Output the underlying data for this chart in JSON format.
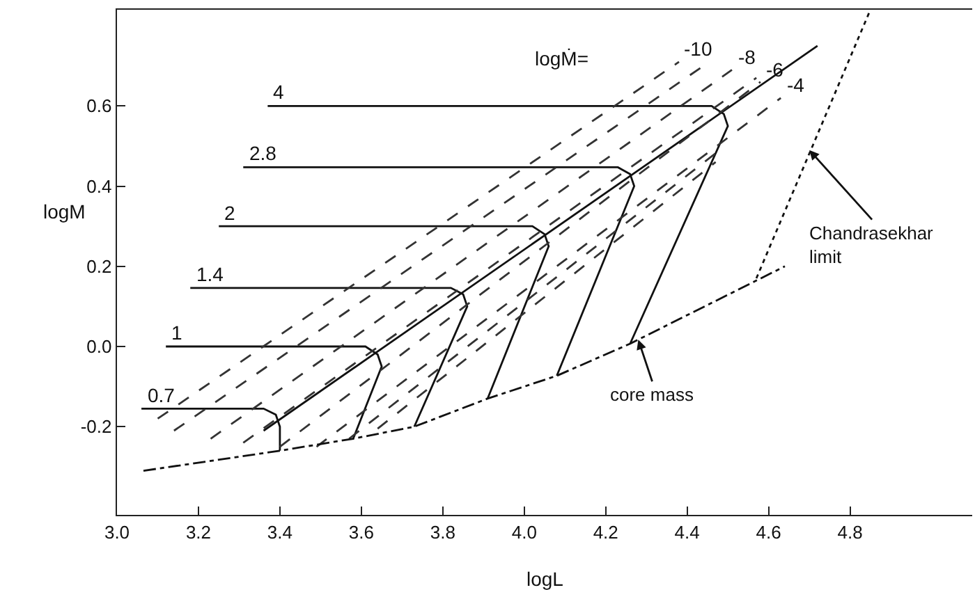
{
  "chart_data": {
    "type": "line",
    "xlabel": "logL",
    "ylabel": "logM",
    "xlim": [
      3.0,
      5.1
    ],
    "ylim": [
      -0.42,
      0.84
    ],
    "xticks": [
      {
        "value": 3.0,
        "label": "3.0"
      },
      3.2,
      3.4,
      3.6,
      3.8,
      {
        "value": 4.0,
        "label": "4.0"
      },
      4.2,
      4.4,
      4.6,
      4.8
    ],
    "yticks": [
      {
        "value": -0.2,
        "label": "-0.2"
      },
      {
        "value": 0.0,
        "label": "0.0"
      },
      0.2,
      0.4,
      0.6
    ],
    "legend": false,
    "marker": "none",
    "series": [
      {
        "name": "4",
        "color": "#111111",
        "line_style": "solid",
        "x": [
          3.37,
          4.46,
          4.49,
          4.5,
          4.26
        ],
        "values": [
          0.6,
          0.6,
          0.58,
          0.55,
          0.007
        ]
      },
      {
        "name": "2.8",
        "color": "#111111",
        "line_style": "solid",
        "x": [
          3.31,
          4.23,
          4.26,
          4.27,
          4.08
        ],
        "values": [
          0.447,
          0.447,
          0.43,
          0.4,
          -0.073
        ]
      },
      {
        "name": "2",
        "color": "#111111",
        "line_style": "solid",
        "x": [
          3.25,
          4.02,
          4.05,
          4.06,
          3.91
        ],
        "values": [
          0.3,
          0.3,
          0.28,
          0.25,
          -0.13
        ]
      },
      {
        "name": "1.4",
        "color": "#111111",
        "line_style": "solid",
        "x": [
          3.18,
          3.82,
          3.85,
          3.86,
          3.73
        ],
        "values": [
          0.146,
          0.146,
          0.13,
          0.1,
          -0.2
        ]
      },
      {
        "name": "1",
        "color": "#111111",
        "line_style": "solid",
        "x": [
          3.12,
          3.61,
          3.64,
          3.65,
          3.58
        ],
        "values": [
          0.0,
          0.0,
          -0.02,
          -0.05,
          -0.23
        ]
      },
      {
        "name": "0.7",
        "color": "#111111",
        "line_style": "solid",
        "x": [
          3.06,
          3.36,
          3.39,
          3.4,
          3.4
        ],
        "values": [
          -0.155,
          -0.155,
          -0.17,
          -0.2,
          -0.26
        ]
      },
      {
        "color": "#111111",
        "line_style": "solid",
        "x": [
          3.36,
          4.72
        ],
        "values": [
          -0.21,
          0.75
        ]
      },
      {
        "name": "-10",
        "color": "#333333",
        "line_style": "dashed",
        "x": [
          3.1,
          4.38
        ],
        "values": [
          -0.18,
          0.71
        ]
      },
      {
        "color": "#333333",
        "line_style": "dashed",
        "x": [
          3.14,
          4.44
        ],
        "values": [
          -0.21,
          0.7
        ]
      },
      {
        "name": "-8",
        "color": "#333333",
        "line_style": "dashed",
        "x": [
          3.23,
          4.51
        ],
        "values": [
          -0.23,
          0.69
        ]
      },
      {
        "color": "#333333",
        "line_style": "dashed",
        "x": [
          3.31,
          4.57
        ],
        "values": [
          -0.24,
          0.67
        ]
      },
      {
        "name": "-6",
        "color": "#333333",
        "line_style": "dashed",
        "x": [
          3.4,
          4.58
        ],
        "values": [
          -0.25,
          0.66
        ]
      },
      {
        "name": "-4",
        "color": "#333333",
        "line_style": "dashed",
        "x": [
          3.49,
          4.63
        ],
        "values": [
          -0.25,
          0.62
        ]
      },
      {
        "color": "#333333",
        "line_style": "dashed",
        "x": [
          3.57,
          4.48
        ],
        "values": [
          -0.23,
          0.49
        ]
      },
      {
        "color": "#333333",
        "line_style": "dashed",
        "x": [
          3.64,
          4.47
        ],
        "values": [
          -0.205,
          0.46
        ]
      },
      {
        "color": "#111111",
        "line_style": "dashdot",
        "x": [
          3.065,
          3.4,
          3.58,
          3.73,
          3.91,
          4.08,
          4.26,
          4.64
        ],
        "values": [
          -0.31,
          -0.26,
          -0.23,
          -0.2,
          -0.13,
          -0.073,
          0.007,
          0.2
        ]
      },
      {
        "color": "#111111",
        "line_style": "dotted",
        "x": [
          4.57,
          4.85
        ],
        "values": [
          0.17,
          0.84
        ]
      }
    ],
    "annotations": [
      "logṀ=",
      {
        "text": "Chandrasekhar\nlimit",
        "x": 4.7,
        "y": 0.49
      },
      {
        "text": "core mass",
        "x": 4.28,
        "y": 0.017
      }
    ]
  }
}
